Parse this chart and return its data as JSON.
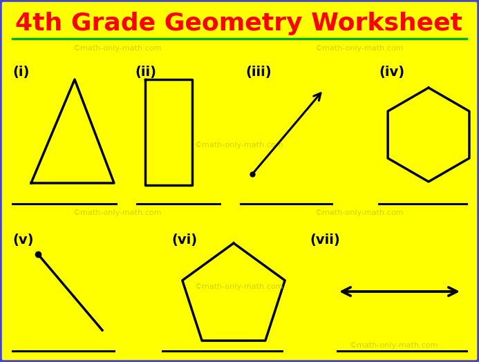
{
  "title": "4th Grade Geometry Worksheet",
  "title_color": "#FF0000",
  "title_fontsize": 26,
  "bg_color": "#FFFF00",
  "border_color": "#4444CC",
  "green_line_color": "#00AA00",
  "watermark_color": "#C8C800",
  "watermark_text": "©math-only-math.com",
  "watermark_fontsize": 8,
  "shape_color": "#000000",
  "shape_lw": 2.2,
  "labels": [
    "(i)",
    "(ii)",
    "(iii)",
    "(iv)",
    "(v)",
    "(vi)",
    "(vii)"
  ],
  "label_fontsize": 14
}
